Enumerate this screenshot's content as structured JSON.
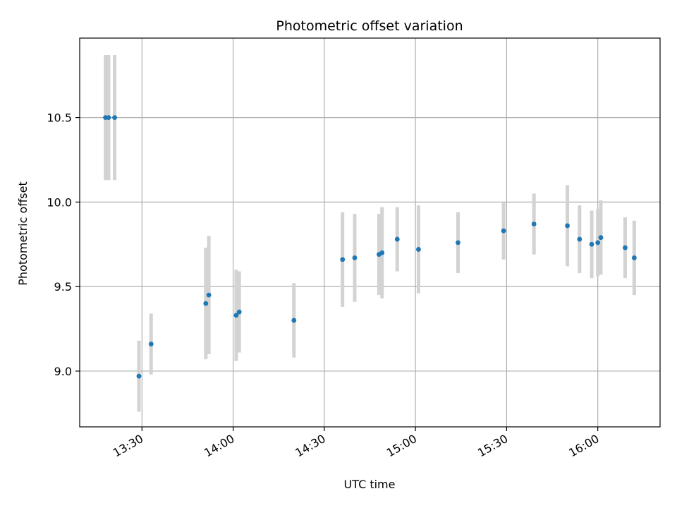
{
  "chart_data": {
    "type": "scatter",
    "title": "Photometric offset variation",
    "xlabel": "UTC time",
    "ylabel": "Photometric offset",
    "x_ticks": [
      "13:30",
      "14:00",
      "14:30",
      "15:00",
      "15:30",
      "16:00"
    ],
    "y_ticks": [
      "9.0",
      "9.5",
      "10.0",
      "10.5"
    ],
    "xlim": [
      "13:09.5",
      "16:20.5"
    ],
    "ylim": [
      8.67,
      10.97
    ],
    "grid": true,
    "colors": {
      "point": "#1f77b4",
      "errorbar": "#d3d3d3",
      "grid": "#b0b0b0",
      "axis": "#000000"
    },
    "points": [
      {
        "t": "13:18",
        "y": 10.5,
        "err": 0.37
      },
      {
        "t": "13:19",
        "y": 10.5,
        "err": 0.37
      },
      {
        "t": "13:21",
        "y": 10.5,
        "err": 0.37
      },
      {
        "t": "13:29",
        "y": 8.97,
        "err": 0.21
      },
      {
        "t": "13:33",
        "y": 9.16,
        "err": 0.18
      },
      {
        "t": "13:51",
        "y": 9.4,
        "err": 0.33
      },
      {
        "t": "13:52",
        "y": 9.45,
        "err": 0.35
      },
      {
        "t": "14:01",
        "y": 9.33,
        "err": 0.27
      },
      {
        "t": "14:02",
        "y": 9.35,
        "err": 0.24
      },
      {
        "t": "14:20",
        "y": 9.3,
        "err": 0.22
      },
      {
        "t": "14:36",
        "y": 9.66,
        "err": 0.28
      },
      {
        "t": "14:40",
        "y": 9.67,
        "err": 0.26
      },
      {
        "t": "14:48",
        "y": 9.69,
        "err": 0.24
      },
      {
        "t": "14:49",
        "y": 9.7,
        "err": 0.27
      },
      {
        "t": "14:54",
        "y": 9.78,
        "err": 0.19
      },
      {
        "t": "15:01",
        "y": 9.72,
        "err": 0.26
      },
      {
        "t": "15:14",
        "y": 9.76,
        "err": 0.18
      },
      {
        "t": "15:29",
        "y": 9.83,
        "err": 0.17
      },
      {
        "t": "15:39",
        "y": 9.87,
        "err": 0.18
      },
      {
        "t": "15:50",
        "y": 9.86,
        "err": 0.24
      },
      {
        "t": "15:54",
        "y": 9.78,
        "err": 0.2
      },
      {
        "t": "15:58",
        "y": 9.75,
        "err": 0.2
      },
      {
        "t": "16:00",
        "y": 9.76,
        "err": 0.2
      },
      {
        "t": "16:01",
        "y": 9.79,
        "err": 0.22
      },
      {
        "t": "16:09",
        "y": 9.73,
        "err": 0.18
      },
      {
        "t": "16:12",
        "y": 9.67,
        "err": 0.22
      }
    ]
  }
}
